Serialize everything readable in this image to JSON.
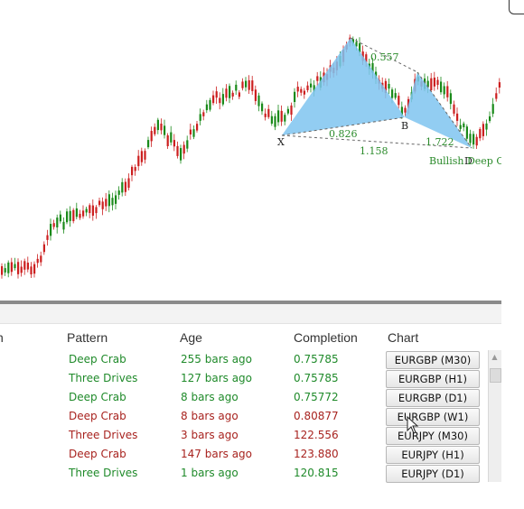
{
  "chart": {
    "pattern_points": {
      "X": "X",
      "B": "B",
      "D": "D"
    },
    "ratios": [
      "0.557",
      "0.826",
      "1.158",
      "1.722"
    ],
    "pattern_label": "Bullish Deep Crab",
    "colors": {
      "bull": "#1a8a1a",
      "bear": "#cc1f1f",
      "pattern_fill": "#7fc4f0",
      "label_green": "#2a8a2a"
    }
  },
  "table": {
    "headers": [
      "n",
      "Pattern",
      "Age",
      "Completion",
      "Chart"
    ],
    "rows": [
      {
        "pattern": "Deep Crab",
        "age": "255 bars ago",
        "completion": "0.75785",
        "chart": "EURGBP (M30)",
        "color": "#1f8a2a"
      },
      {
        "pattern": "Three Drives",
        "age": "127 bars ago",
        "completion": "0.75785",
        "chart": "EURGBP (H1)",
        "color": "#1f8a2a"
      },
      {
        "pattern": "Deep Crab",
        "age": "8 bars ago",
        "completion": "0.75772",
        "chart": "EURGBP (D1)",
        "color": "#1f8a2a"
      },
      {
        "pattern": "Deep Crab",
        "age": "8 bars ago",
        "completion": "0.80877",
        "chart": "EURGBP (W1)",
        "color": "#a8231f"
      },
      {
        "pattern": "Three Drives",
        "age": "3 bars ago",
        "completion": "122.556",
        "chart": "EURJPY (M30)",
        "color": "#a8231f"
      },
      {
        "pattern": "Deep Crab",
        "age": "147 bars ago",
        "completion": "123.880",
        "chart": "EURJPY (H1)",
        "color": "#a8231f"
      },
      {
        "pattern": "Three Drives",
        "age": "1 bars ago",
        "completion": "120.815",
        "chart": "EURJPY (D1)",
        "color": "#1f8a2a"
      }
    ]
  }
}
